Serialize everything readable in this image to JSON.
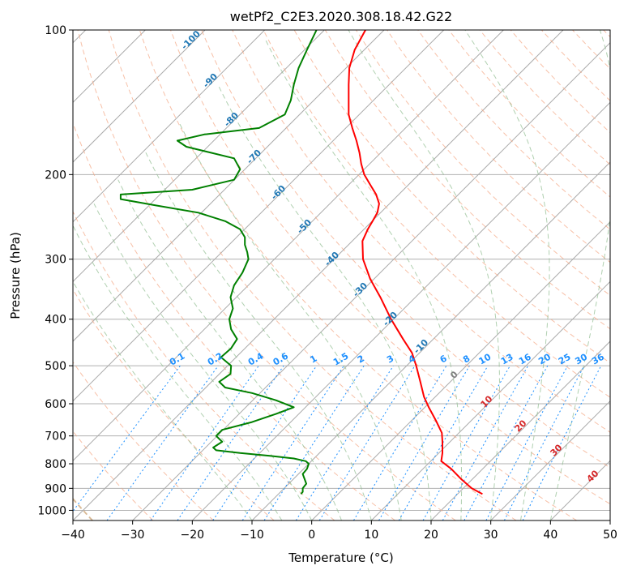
{
  "chart_data": {
    "type": "line",
    "title": "wetPf2_C2E3.2020.308.18.42.G22",
    "xlabel": "Temperature (°C)",
    "ylabel": "Pressure (hPa)",
    "xlim": [
      -40,
      50
    ],
    "ylim": [
      1050,
      100
    ],
    "y_scale": "log",
    "x_ticks": [
      "−40",
      "−30",
      "−20",
      "−10",
      "0",
      "10",
      "20",
      "30",
      "40",
      "50"
    ],
    "y_ticks": [
      {
        "p": 100,
        "label": "100"
      },
      {
        "p": 200,
        "label": "200"
      },
      {
        "p": 300,
        "label": "300"
      },
      {
        "p": 400,
        "label": "400"
      },
      {
        "p": 500,
        "label": "500"
      },
      {
        "p": 600,
        "label": "600"
      },
      {
        "p": 700,
        "label": "700"
      },
      {
        "p": 800,
        "label": "800"
      },
      {
        "p": 900,
        "label": "900"
      },
      {
        "p": 1000,
        "label": "1000"
      }
    ],
    "grid": true,
    "colors": {
      "temperature": "#ff0000",
      "dewpoint": "#008000",
      "isotherm": "#aaaaaa",
      "dry_adiabat": "#f4a582",
      "moist_adiabat": "#8fbc8f",
      "mixing_ratio": "#1e90ff",
      "dry_label": "#1f77b4",
      "moist_label": "#d62728",
      "saturation_curve": "#d2b48c"
    },
    "series": [
      {
        "key": "temperature",
        "values": [
          [
            100,
            9
          ],
          [
            110,
            7.2
          ],
          [
            120,
            6.3
          ],
          [
            130,
            6.2
          ],
          [
            140,
            6.2
          ],
          [
            150,
            6.2
          ],
          [
            160,
            6.8
          ],
          [
            170,
            7.5
          ],
          [
            180,
            8.0
          ],
          [
            190,
            8.3
          ],
          [
            200,
            8.8
          ],
          [
            210,
            9.8
          ],
          [
            220,
            10.8
          ],
          [
            230,
            11.3
          ],
          [
            240,
            11.0
          ],
          [
            250,
            10.2
          ],
          [
            260,
            9.4
          ],
          [
            275,
            8.5
          ],
          [
            300,
            8.6
          ],
          [
            330,
            9.8
          ],
          [
            360,
            11.5
          ],
          [
            400,
            13.3
          ],
          [
            440,
            15.3
          ],
          [
            470,
            16.8
          ],
          [
            500,
            17.5
          ],
          [
            540,
            18.2
          ],
          [
            580,
            18.8
          ],
          [
            610,
            19.6
          ],
          [
            650,
            20.8
          ],
          [
            690,
            21.8
          ],
          [
            720,
            21.9
          ],
          [
            760,
            21.9
          ],
          [
            790,
            21.7
          ],
          [
            820,
            23.4
          ],
          [
            860,
            25.0
          ],
          [
            900,
            26.8
          ],
          [
            925,
            28.6
          ]
        ]
      },
      {
        "key": "dewpoint",
        "values": [
          [
            100,
            0.8
          ],
          [
            110,
            -0.8
          ],
          [
            120,
            -2.2
          ],
          [
            130,
            -3.0
          ],
          [
            140,
            -3.5
          ],
          [
            150,
            -4.5
          ],
          [
            160,
            -8.8
          ],
          [
            165,
            -18.0
          ],
          [
            170,
            -22.5
          ],
          [
            175,
            -21.0
          ],
          [
            185,
            -13.0
          ],
          [
            195,
            -12.0
          ],
          [
            205,
            -13.0
          ],
          [
            215,
            -20.0
          ],
          [
            220,
            -32.0
          ],
          [
            225,
            -32.0
          ],
          [
            232,
            -26.0
          ],
          [
            240,
            -19.0
          ],
          [
            250,
            -14.5
          ],
          [
            260,
            -12.0
          ],
          [
            270,
            -11.2
          ],
          [
            280,
            -11.2
          ],
          [
            290,
            -10.8
          ],
          [
            300,
            -10.6
          ],
          [
            320,
            -11.6
          ],
          [
            340,
            -13.0
          ],
          [
            360,
            -13.6
          ],
          [
            380,
            -13.2
          ],
          [
            400,
            -13.8
          ],
          [
            420,
            -13.5
          ],
          [
            440,
            -12.5
          ],
          [
            460,
            -13.5
          ],
          [
            480,
            -15.2
          ],
          [
            500,
            -13.5
          ],
          [
            520,
            -13.6
          ],
          [
            540,
            -15.5
          ],
          [
            555,
            -14.5
          ],
          [
            570,
            -10.0
          ],
          [
            590,
            -6.0
          ],
          [
            610,
            -3.0
          ],
          [
            630,
            -6.0
          ],
          [
            655,
            -10.0
          ],
          [
            680,
            -15.0
          ],
          [
            700,
            -16.0
          ],
          [
            720,
            -15.0
          ],
          [
            740,
            -16.5
          ],
          [
            750,
            -16.0
          ],
          [
            760,
            -12.0
          ],
          [
            770,
            -7.0
          ],
          [
            780,
            -3.0
          ],
          [
            790,
            -1.0
          ],
          [
            800,
            -0.5
          ],
          [
            820,
            -0.8
          ],
          [
            840,
            -1.5
          ],
          [
            860,
            -1.2
          ],
          [
            880,
            -0.9
          ],
          [
            900,
            -1.5
          ],
          [
            915,
            -1.5
          ],
          [
            925,
            -1.8
          ]
        ]
      }
    ],
    "dry_adiabat_labels": [
      "-100",
      "-90",
      "-80",
      "-70",
      "-60",
      "-50",
      "-40",
      "-30",
      "-20",
      "-10"
    ],
    "mixing_ratio_labels": [
      "0.1",
      "0.2",
      "0.4",
      "0.6",
      "1",
      "1.5",
      "2",
      "3",
      "4",
      "6",
      "8",
      "10",
      "13",
      "16",
      "20",
      "25",
      "30",
      "36"
    ],
    "moist_adiabat_labels": [
      "0",
      "10",
      "20",
      "30",
      "40"
    ]
  }
}
